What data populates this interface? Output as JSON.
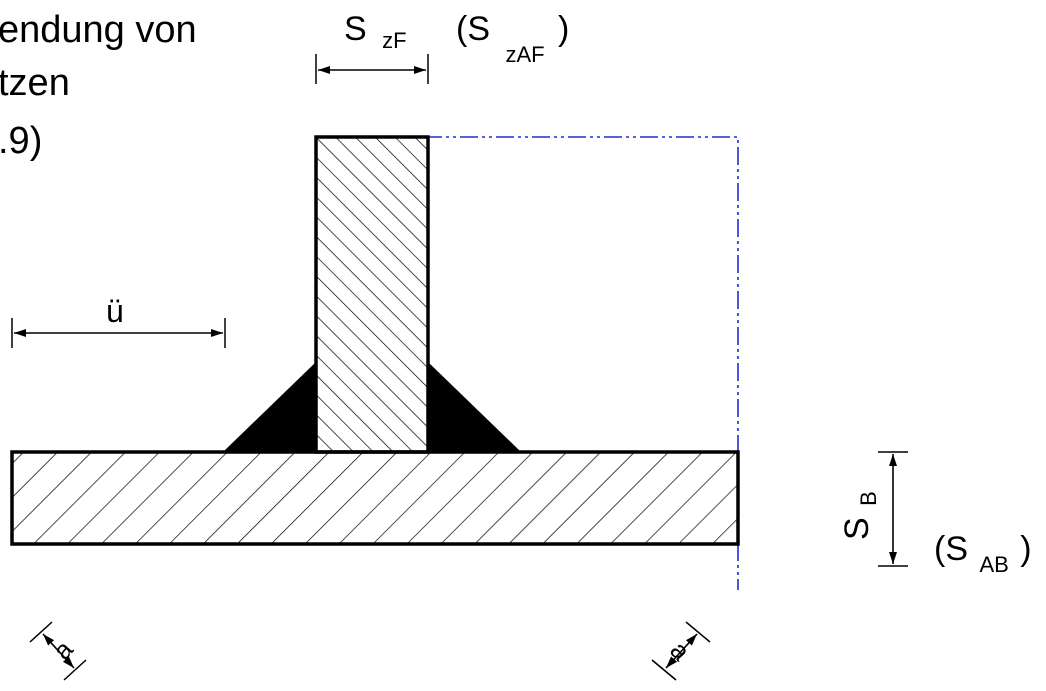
{
  "title_lines": [
    "endung von",
    "tzen",
    ".9)"
  ],
  "dims": {
    "s_zf_main": "S",
    "s_zf_sub": "zF",
    "s_zaf_open": "(S",
    "s_zaf_sub": "zAF",
    "s_zaf_close": ")",
    "overhang": "ü",
    "s_b_main": "S",
    "s_b_sub": "B",
    "s_ab_open": "(S",
    "s_ab_sub": "AB",
    "s_ab_close": ")",
    "weld_left": "a",
    "weld_right": "a"
  },
  "colors": {
    "outline": "#000000",
    "centerline": "#1f2fd0",
    "weld_fill": "#000000",
    "background": "#ffffff"
  }
}
